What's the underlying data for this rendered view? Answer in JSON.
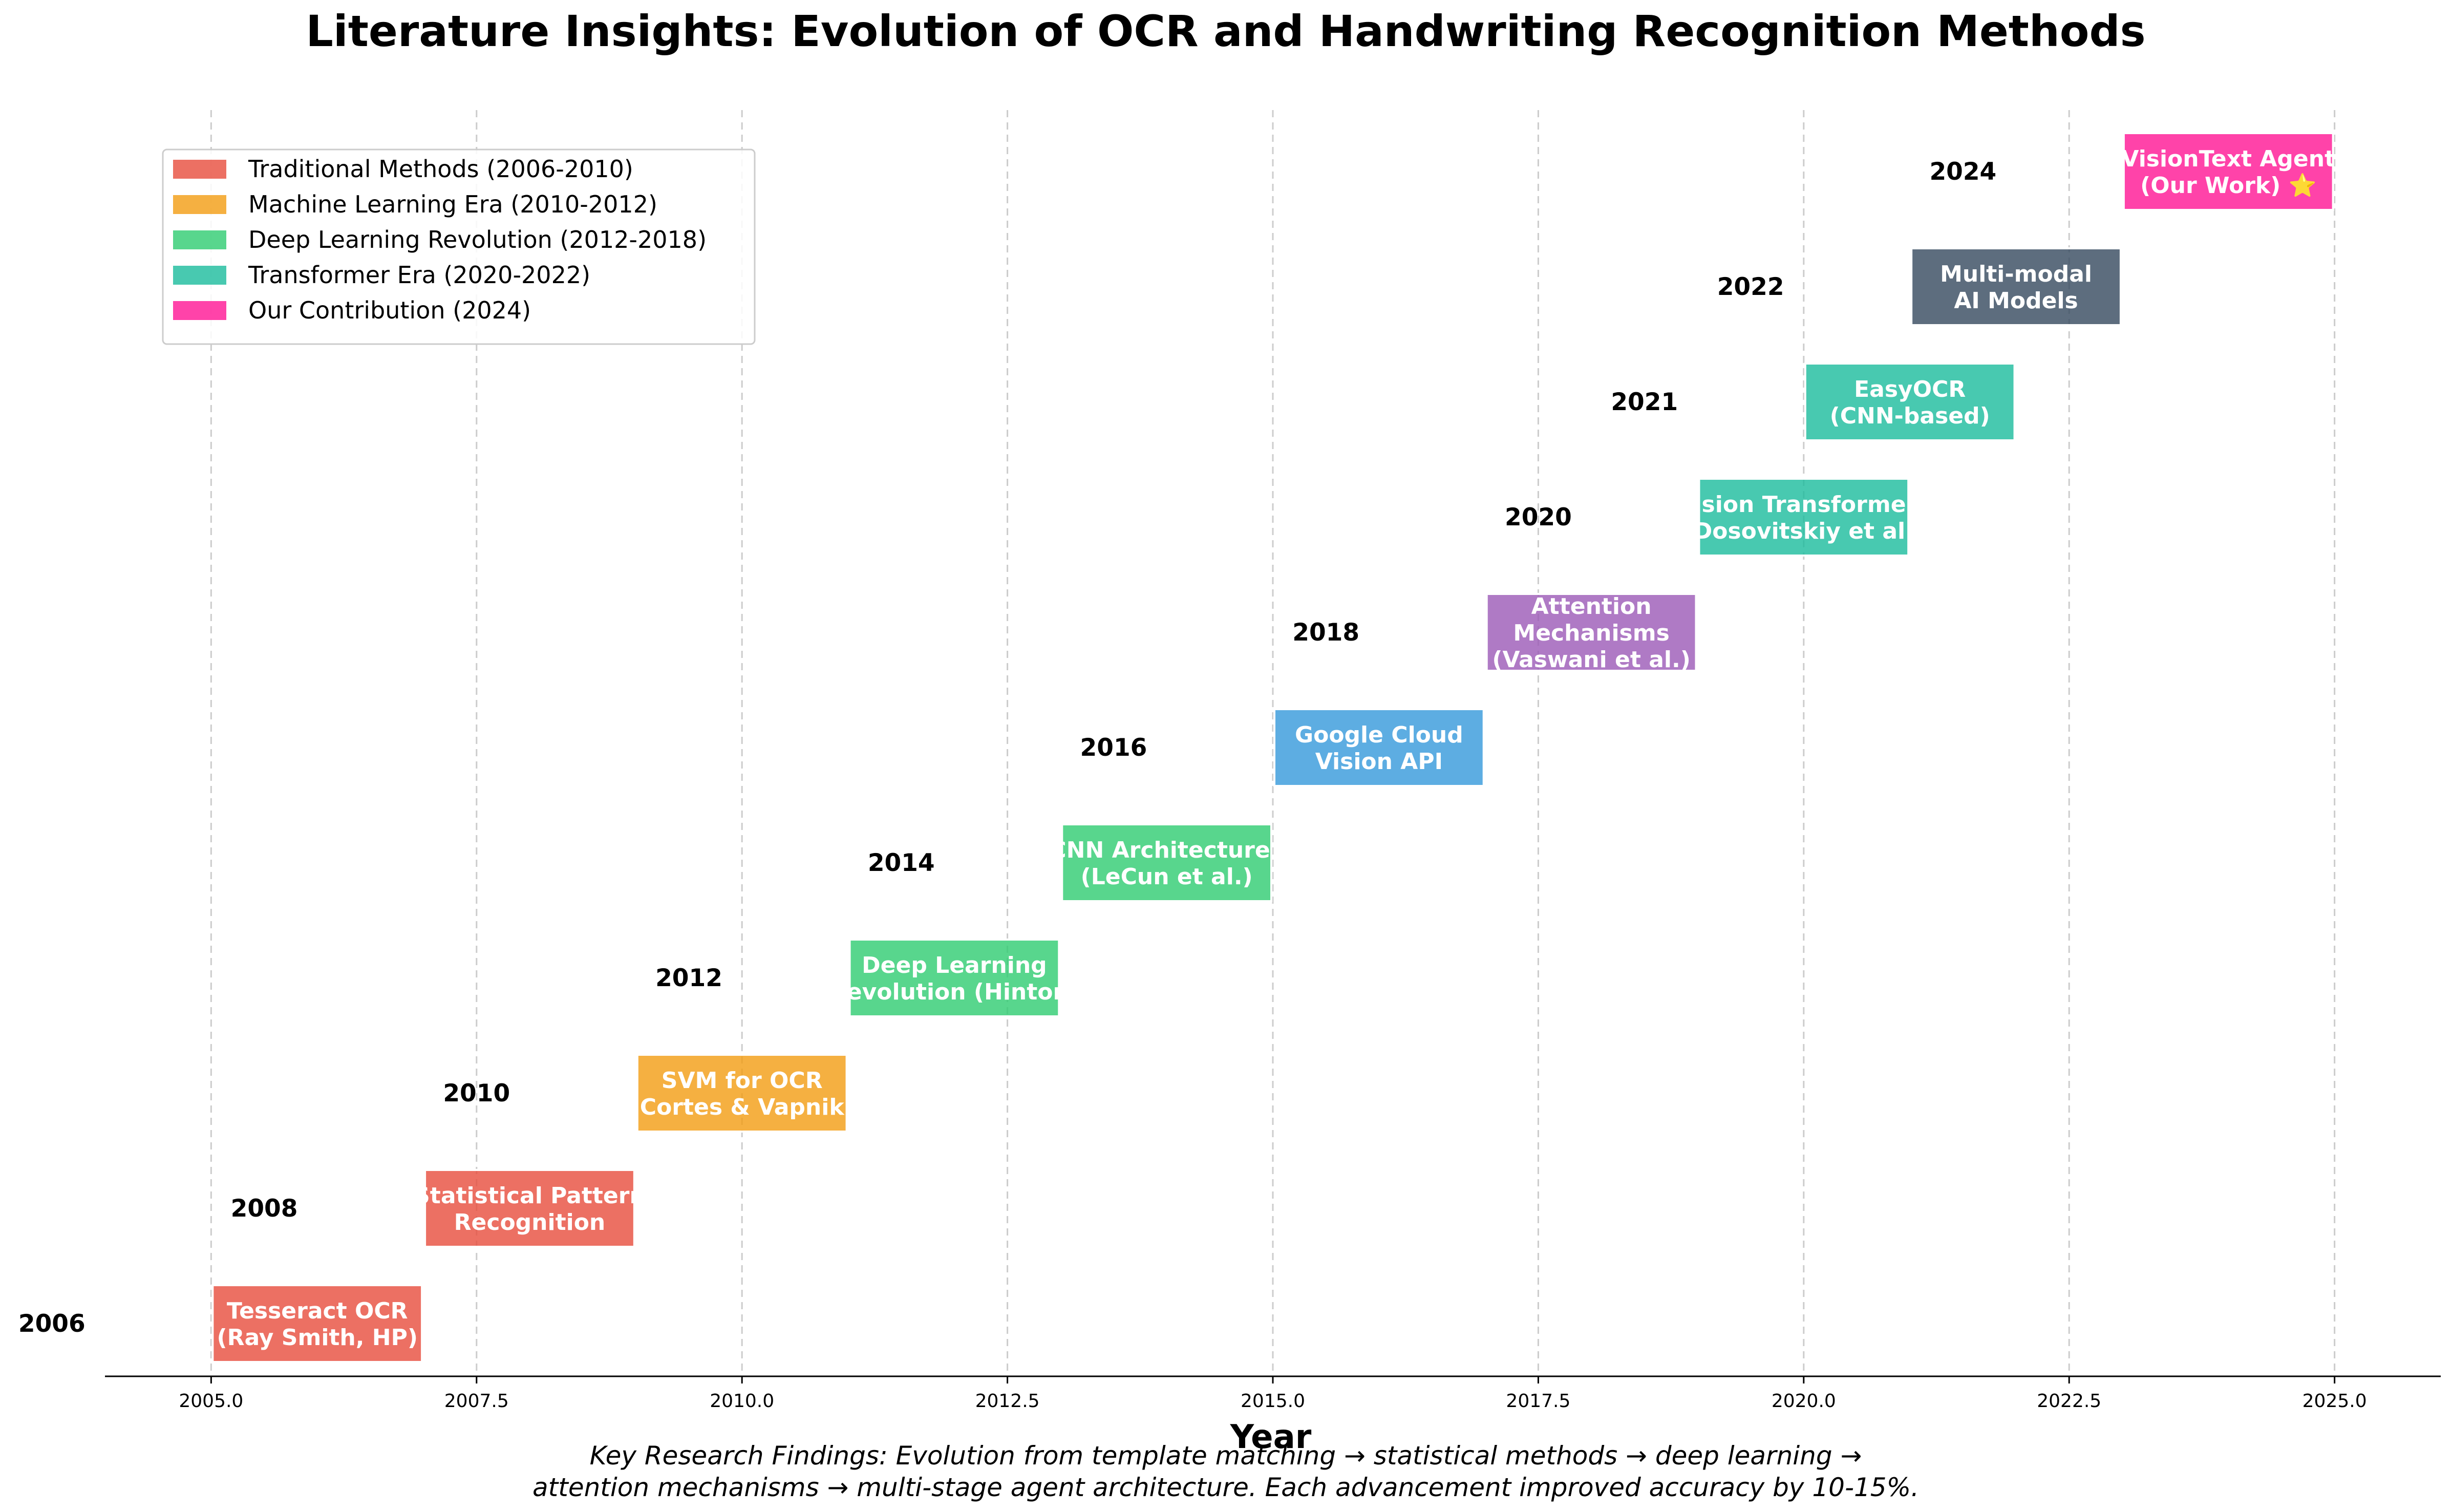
{
  "chart_data": {
    "type": "timeline",
    "title": "Literature Insights: Evolution of OCR and Handwriting Recognition Methods",
    "xlabel": "Year",
    "xlim": [
      2004,
      2026
    ],
    "x_ticks": [
      "2005.0",
      "2007.5",
      "2010.0",
      "2012.5",
      "2015.0",
      "2017.5",
      "2020.0",
      "2022.5",
      "2025.0"
    ],
    "tick_values": [
      2005,
      2007.5,
      2010,
      2012.5,
      2015,
      2017.5,
      2020,
      2022.5,
      2025
    ],
    "grid": "vertical dashed",
    "legend_position": "top-left",
    "events": [
      {
        "year_label": "2006",
        "start": 2005,
        "end": 2007,
        "lines": [
          "Tesseract OCR",
          "(Ray Smith, HP)"
        ],
        "color": "#E74C3C"
      },
      {
        "year_label": "2008",
        "start": 2007,
        "end": 2009,
        "lines": [
          "Statistical Pattern",
          "Recognition"
        ],
        "color": "#E74C3C"
      },
      {
        "year_label": "2010",
        "start": 2009,
        "end": 2011,
        "lines": [
          "SVM for OCR",
          "(Cortes & Vapnik)"
        ],
        "color": "#F39C12"
      },
      {
        "year_label": "2012",
        "start": 2011,
        "end": 2013,
        "lines": [
          "Deep Learning",
          "Revolution (Hinton)"
        ],
        "color": "#2ECC71"
      },
      {
        "year_label": "2014",
        "start": 2013,
        "end": 2015,
        "lines": [
          "CNN Architectures",
          "(LeCun et al.)"
        ],
        "color": "#2ECC71"
      },
      {
        "year_label": "2016",
        "start": 2015,
        "end": 2017,
        "lines": [
          "Google Cloud",
          "Vision API"
        ],
        "color": "#3498DB"
      },
      {
        "year_label": "2018",
        "start": 2017,
        "end": 2019,
        "lines": [
          "Attention",
          "Mechanisms",
          "(Vaswani et al.)"
        ],
        "color": "#9B59B6"
      },
      {
        "year_label": "2020",
        "start": 2019,
        "end": 2021,
        "lines": [
          "Vision Transformers",
          "(Dosovitskiy et al.)"
        ],
        "color": "#1ABC9C"
      },
      {
        "year_label": "2021",
        "start": 2020,
        "end": 2022,
        "lines": [
          "EasyOCR",
          "(CNN-based)"
        ],
        "color": "#1ABC9C"
      },
      {
        "year_label": "2022",
        "start": 2021,
        "end": 2023,
        "lines": [
          "Multi-modal",
          "AI Models"
        ],
        "color": "#34495E"
      },
      {
        "year_label": "2024",
        "start": 2023,
        "end": 2025,
        "lines": [
          "VisionText Agent",
          "(Our Work) ⭐"
        ],
        "color": "#FF1493"
      }
    ],
    "legend": [
      {
        "label": "Traditional Methods (2006-2010)",
        "color": "#E74C3C"
      },
      {
        "label": "Machine Learning Era (2010-2012)",
        "color": "#F39C12"
      },
      {
        "label": "Deep Learning Revolution (2012-2018)",
        "color": "#2ECC71"
      },
      {
        "label": "Transformer Era (2020-2022)",
        "color": "#1ABC9C"
      },
      {
        "label": "Our Contribution (2024)",
        "color": "#FF1493"
      }
    ],
    "caption_lines": [
      "Key Research Findings: Evolution from template matching → statistical methods → deep learning →",
      "attention mechanisms → multi-stage agent architecture. Each advancement improved accuracy by 10-15%."
    ]
  }
}
